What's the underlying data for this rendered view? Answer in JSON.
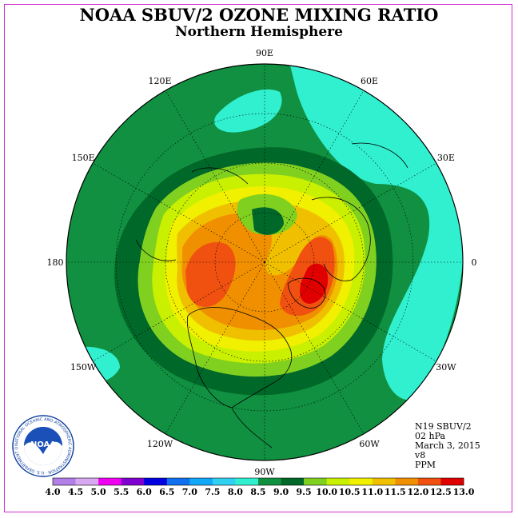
{
  "header": {
    "title": "NOAA SBUV/2 OZONE MIXING RATIO",
    "subtitle": "Northern Hemisphere"
  },
  "map": {
    "projection": "north-polar-stereographic",
    "longitude_labels": [
      {
        "text": "90E",
        "angle_deg": 90
      },
      {
        "text": "60E",
        "angle_deg": 60
      },
      {
        "text": "30E",
        "angle_deg": 30
      },
      {
        "text": "0",
        "angle_deg": 0
      },
      {
        "text": "30W",
        "angle_deg": -30
      },
      {
        "text": "60W",
        "angle_deg": -60
      },
      {
        "text": "90W",
        "angle_deg": -90
      },
      {
        "text": "120W",
        "angle_deg": -120
      },
      {
        "text": "150W",
        "angle_deg": -150
      },
      {
        "text": "180",
        "angle_deg": 180
      },
      {
        "text": "150E",
        "angle_deg": 150
      },
      {
        "text": "120E",
        "angle_deg": 120
      }
    ]
  },
  "info": {
    "instrument": "N19 SBUV/2",
    "level": "02 hPa",
    "date": "March 3, 2015",
    "version": "v8",
    "units": "PPM"
  },
  "colorbar": {
    "ticks": [
      "4.0",
      "4.5",
      "5.0",
      "5.5",
      "6.0",
      "6.5",
      "7.0",
      "7.5",
      "8.0",
      "8.5",
      "9.0",
      "9.5",
      "10.0",
      "10.5",
      "11.0",
      "11.5",
      "12.0",
      "12.5",
      "13.0"
    ],
    "colors": [
      "#b080e8",
      "#d8a8f0",
      "#f000f0",
      "#8000d0",
      "#0000e0",
      "#1070f0",
      "#10a8f8",
      "#30d0f0",
      "#30f0d0",
      "#109040",
      "#006828",
      "#80d020",
      "#c8f000",
      "#f0f000",
      "#f0c000",
      "#f09000",
      "#f05010",
      "#e00000",
      "#905030"
    ]
  },
  "logo": {
    "text": "NOAA",
    "ring_text": "NATIONAL OCEANIC AND ATMOSPHERIC ADMINISTRATION · U.S. DEPARTMENT OF COMMERCE"
  }
}
